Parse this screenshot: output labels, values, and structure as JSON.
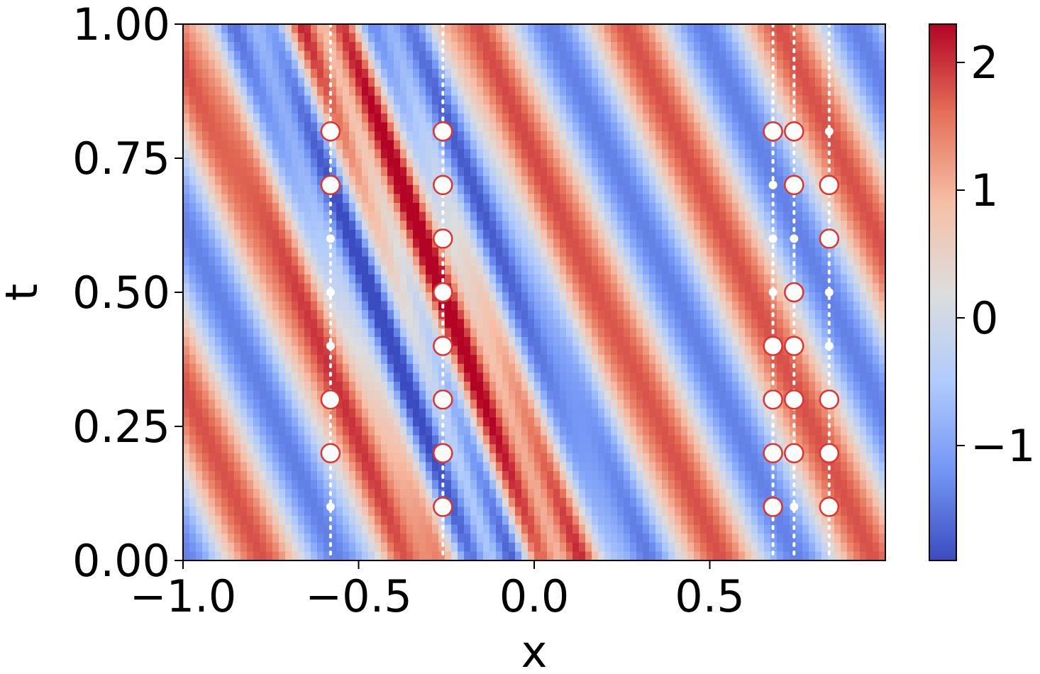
{
  "chart_data": {
    "type": "heatmap",
    "xlabel": "x",
    "ylabel": "t",
    "xlim": [
      -1.0,
      1.0
    ],
    "ylim": [
      0.0,
      1.0
    ],
    "x_ticks": [
      -1.0,
      -0.5,
      0.0,
      0.5
    ],
    "x_tick_labels": [
      "−1.0",
      "−0.5",
      "0.0",
      "0.5"
    ],
    "y_ticks": [
      0.0,
      0.25,
      0.5,
      0.75,
      1.0
    ],
    "y_tick_labels": [
      "0.00",
      "0.25",
      "0.50",
      "0.75",
      "1.00"
    ],
    "colorbar": {
      "range": [
        -1.9,
        2.3
      ],
      "ticks": [
        -1,
        0,
        1,
        2
      ],
      "tick_labels": [
        "−1",
        "0",
        "1",
        "2"
      ],
      "colormap": "coolwarm",
      "colors": [
        "#3b4cc0",
        "#7396f5",
        "#b0cbfc",
        "#dddddd",
        "#f6bfa6",
        "#e57058",
        "#b40426"
      ]
    },
    "field": {
      "description": "oscillating travelling-wave field u(x,t) shown as diagonal bands",
      "value_range": [
        -1.9,
        2.3
      ]
    },
    "sensor_columns_x": [
      -0.58,
      -0.26,
      0.68,
      0.74,
      0.84
    ],
    "grid": false,
    "series": [
      {
        "marker": "open-circle-red-edge",
        "points": [
          {
            "x": -0.58,
            "t": 0.8
          },
          {
            "x": -0.58,
            "t": 0.7
          },
          {
            "x": -0.58,
            "t": 0.3
          },
          {
            "x": -0.58,
            "t": 0.2
          },
          {
            "x": -0.26,
            "t": 0.8
          },
          {
            "x": -0.26,
            "t": 0.7
          },
          {
            "x": -0.26,
            "t": 0.6
          },
          {
            "x": -0.26,
            "t": 0.5
          },
          {
            "x": -0.26,
            "t": 0.4
          },
          {
            "x": -0.26,
            "t": 0.3
          },
          {
            "x": -0.26,
            "t": 0.2
          },
          {
            "x": -0.26,
            "t": 0.1
          },
          {
            "x": 0.68,
            "t": 0.8
          },
          {
            "x": 0.68,
            "t": 0.4
          },
          {
            "x": 0.68,
            "t": 0.3
          },
          {
            "x": 0.68,
            "t": 0.2
          },
          {
            "x": 0.68,
            "t": 0.1
          },
          {
            "x": 0.74,
            "t": 0.8
          },
          {
            "x": 0.74,
            "t": 0.7
          },
          {
            "x": 0.74,
            "t": 0.5
          },
          {
            "x": 0.74,
            "t": 0.4
          },
          {
            "x": 0.74,
            "t": 0.3
          },
          {
            "x": 0.74,
            "t": 0.2
          },
          {
            "x": 0.84,
            "t": 0.7
          },
          {
            "x": 0.84,
            "t": 0.6
          },
          {
            "x": 0.84,
            "t": 0.3
          },
          {
            "x": 0.84,
            "t": 0.2
          },
          {
            "x": 0.84,
            "t": 0.1
          }
        ]
      },
      {
        "marker": "small-white-dot",
        "points": [
          {
            "x": -0.58,
            "t": 0.6
          },
          {
            "x": -0.58,
            "t": 0.5
          },
          {
            "x": -0.58,
            "t": 0.4
          },
          {
            "x": -0.58,
            "t": 0.1
          },
          {
            "x": 0.68,
            "t": 0.7
          },
          {
            "x": 0.68,
            "t": 0.6
          },
          {
            "x": 0.68,
            "t": 0.5
          },
          {
            "x": 0.74,
            "t": 0.6
          },
          {
            "x": 0.74,
            "t": 0.1
          },
          {
            "x": 0.84,
            "t": 0.8
          },
          {
            "x": 0.84,
            "t": 0.5
          },
          {
            "x": 0.84,
            "t": 0.4
          }
        ]
      }
    ]
  }
}
